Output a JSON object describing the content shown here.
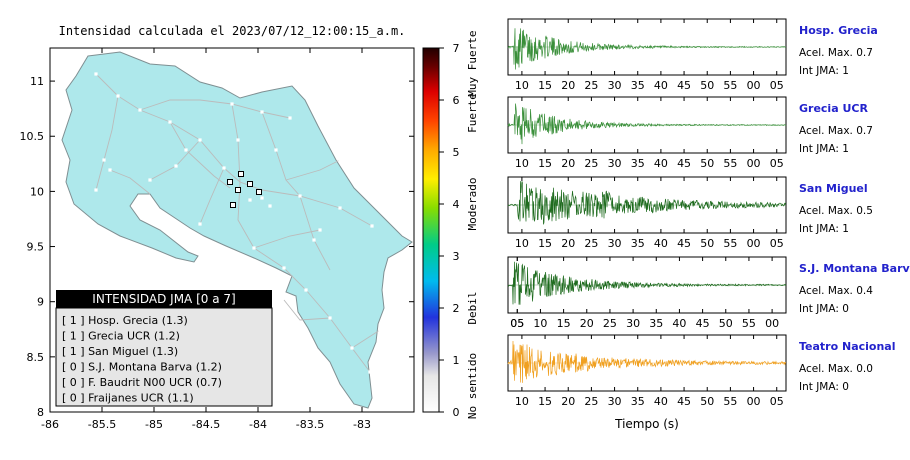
{
  "map": {
    "title": "Intensidad calculada el 2023/07/12_12:00:15_a.m.",
    "x_ticks": [
      "-86",
      "-85.5",
      "-85",
      "-84.5",
      "-84",
      "-83.5",
      "-83"
    ],
    "y_ticks": [
      "11",
      "10.5",
      "10",
      "9.5",
      "9",
      "8.5",
      "8"
    ],
    "xlim": [
      -86,
      -82.5
    ],
    "ylim": [
      8,
      11.3
    ],
    "land_color": "#aee8eb"
  },
  "colorbar": {
    "ticks": [
      "0",
      "1",
      "2",
      "3",
      "4",
      "5",
      "6",
      "7"
    ],
    "labels": [
      "No sentido",
      "Debil",
      "Moderado",
      "Fuerte",
      "Muy Fuerte"
    ],
    "range": [
      0,
      7
    ]
  },
  "legend": {
    "header": "INTENSIDAD JMA [0 a 7]",
    "items": [
      "[ 1 ]  Hosp. Grecia (1.3)",
      "[ 1 ]  Grecia UCR (1.2)",
      "[ 1 ]  San Miguel (1.3)",
      "[ 0 ]  S.J. Montana Barva (1.2)",
      "[ 0 ]  F. Baudrit N00 UCR (0.7)",
      "[ 0 ]  Fraijanes UCR (1.1)"
    ]
  },
  "chart_data": {
    "type": "line",
    "xlabel": "Tiempo (s)",
    "panels": [
      {
        "station": "Hosp. Grecia",
        "accel": "Acel. Max. 0.7",
        "jma": "Int JMA: 1",
        "color": "#3a8f3a",
        "x_ticks": [
          "10",
          "15",
          "20",
          "25",
          "30",
          "35",
          "40",
          "45",
          "50",
          "55",
          "00",
          "05"
        ],
        "x_start": 7,
        "onset": 8.2,
        "peak": 0.9,
        "decay": 0.11,
        "noise": 0.04
      },
      {
        "station": "Grecia UCR",
        "accel": "Acel. Max. 0.7",
        "jma": "Int JMA: 1",
        "color": "#3a8f3a",
        "x_ticks": [
          "10",
          "15",
          "20",
          "25",
          "30",
          "35",
          "40",
          "45",
          "50",
          "55",
          "00",
          "05"
        ],
        "x_start": 7,
        "onset": 8.3,
        "peak": 0.95,
        "decay": 0.12,
        "noise": 0.04
      },
      {
        "station": "San Miguel",
        "accel": "Acel. Max. 0.5",
        "jma": "Int JMA: 1",
        "color": "#1e6b1e",
        "x_ticks": [
          "10",
          "15",
          "20",
          "25",
          "30",
          "35",
          "40",
          "45",
          "50",
          "55",
          "00",
          "05"
        ],
        "x_start": 7,
        "onset": 9.0,
        "peak": 0.95,
        "decay": 0.045,
        "noise": 0.03
      },
      {
        "station": "S.J. Montana Barva",
        "accel": "Acel. Max. 0.4",
        "jma": "Int JMA: 0",
        "color": "#1e6b1e",
        "x_ticks": [
          "05",
          "10",
          "15",
          "20",
          "25",
          "30",
          "35",
          "40",
          "45",
          "50",
          "55",
          "00",
          "05"
        ],
        "x_start": 3,
        "onset": 4.0,
        "peak": 0.95,
        "decay": 0.09,
        "noise": 0.05
      },
      {
        "station": "Teatro Nacional",
        "accel": "Acel. Max. 0.0",
        "jma": "Int JMA: 0",
        "color": "#f0a020",
        "x_ticks": [
          "10",
          "15",
          "20",
          "25",
          "30",
          "35",
          "40",
          "45",
          "50",
          "55",
          "00",
          "05"
        ],
        "x_start": 7,
        "onset": 8.0,
        "peak": 0.85,
        "decay": 0.07,
        "noise": 0.1
      }
    ]
  }
}
